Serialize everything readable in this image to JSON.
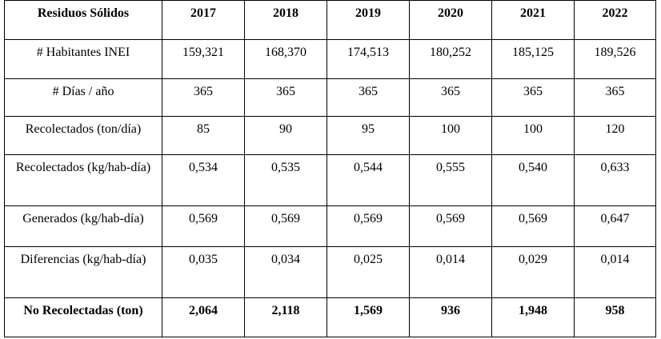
{
  "table": {
    "headers": [
      "Residuos Sólidos",
      "2017",
      "2018",
      "2019",
      "2020",
      "2021",
      "2022"
    ],
    "rows": [
      {
        "label": "# Habitantes INEI",
        "values": [
          "159,321",
          "168,370",
          "174,513",
          "180,252",
          "185,125",
          "189,526"
        ]
      },
      {
        "label": "# Días / año",
        "values": [
          "365",
          "365",
          "365",
          "365",
          "365",
          "365"
        ]
      },
      {
        "label": "Recolectados (ton/día)",
        "values": [
          "85",
          "90",
          "95",
          "100",
          "100",
          "120"
        ]
      },
      {
        "label": "Recolectados (kg/hab-día)",
        "values": [
          "0,534",
          "0,535",
          "0,544",
          "0,555",
          "0,540",
          "0,633"
        ]
      },
      {
        "label": "Generados (kg/hab-día)",
        "values": [
          "0,569",
          "0,569",
          "0,569",
          "0,569",
          "0,569",
          "0,647"
        ]
      },
      {
        "label": "Diferencias (kg/hab-día)",
        "values": [
          "0,035",
          "0,034",
          "0,025",
          "0,014",
          "0,029",
          "0,014"
        ]
      },
      {
        "label": "No Recolectadas (ton)",
        "values": [
          "2,064",
          "2,118",
          "1,569",
          "936",
          "1,948",
          "958"
        ]
      }
    ]
  }
}
